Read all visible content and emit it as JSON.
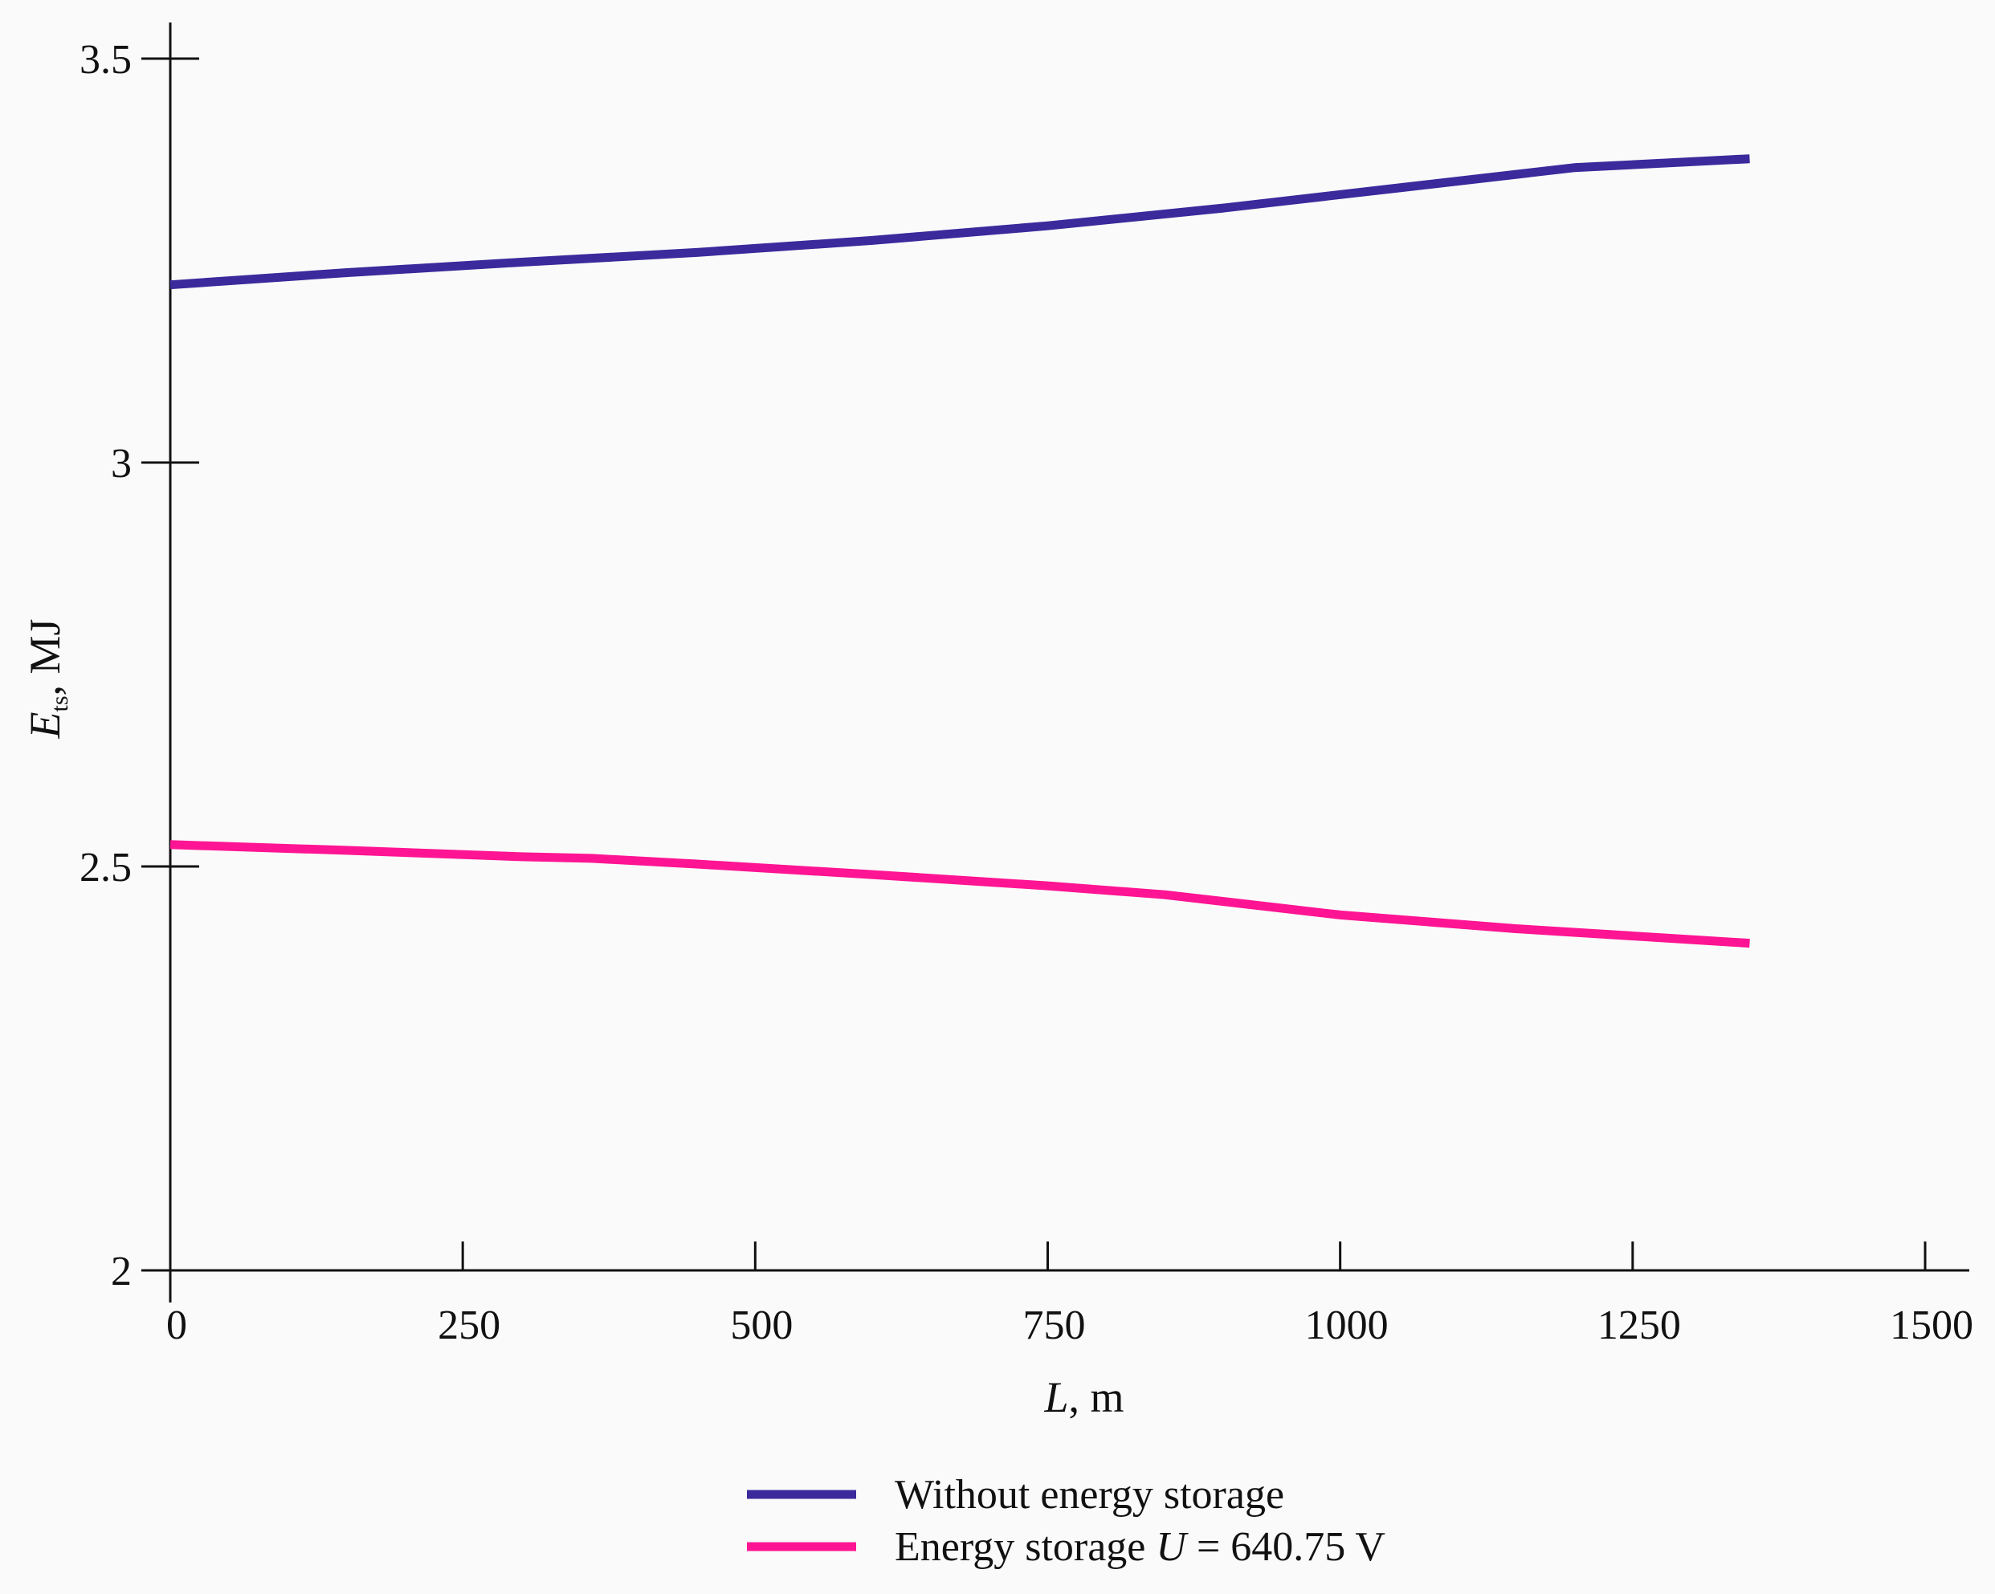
{
  "chart_data": {
    "type": "line",
    "title": "",
    "xlabel": {
      "var": "L",
      "unit": ", m"
    },
    "ylabel": {
      "var": "E",
      "sub": "ts",
      "unit": ", MJ"
    },
    "xlim": [
      0,
      1500
    ],
    "ylim": [
      2,
      3.5
    ],
    "xticks": [
      0,
      250,
      500,
      750,
      1000,
      1250,
      1500
    ],
    "xtick_labels": [
      "0",
      "250",
      "500",
      "750",
      "1000",
      "1250",
      "1500"
    ],
    "yticks": [
      2,
      2.5,
      3,
      3.5
    ],
    "ytick_labels": [
      "2",
      "2.5",
      "3",
      "3.5"
    ],
    "grid": false,
    "legend_position": "bottom-center",
    "series": [
      {
        "name": "Without energy storage",
        "legend": {
          "text": "Without energy storage",
          "var": "",
          "rest": ""
        },
        "color": "#3a2a9c",
        "x": [
          0,
          150,
          300,
          450,
          600,
          750,
          900,
          1050,
          1200,
          1350
        ],
        "values": [
          3.22,
          3.235,
          3.248,
          3.26,
          3.275,
          3.293,
          3.315,
          3.34,
          3.365,
          3.376
        ]
      },
      {
        "name": "Energy storage U = 640.75 V",
        "legend": {
          "text": "Energy storage ",
          "var": "U",
          "rest": " = 640.75 V"
        },
        "color": "#ff1493",
        "x": [
          0,
          150,
          300,
          360,
          450,
          600,
          750,
          850,
          1000,
          1150,
          1350
        ],
        "values": [
          2.527,
          2.52,
          2.512,
          2.51,
          2.503,
          2.49,
          2.476,
          2.465,
          2.44,
          2.423,
          2.405
        ]
      }
    ]
  }
}
